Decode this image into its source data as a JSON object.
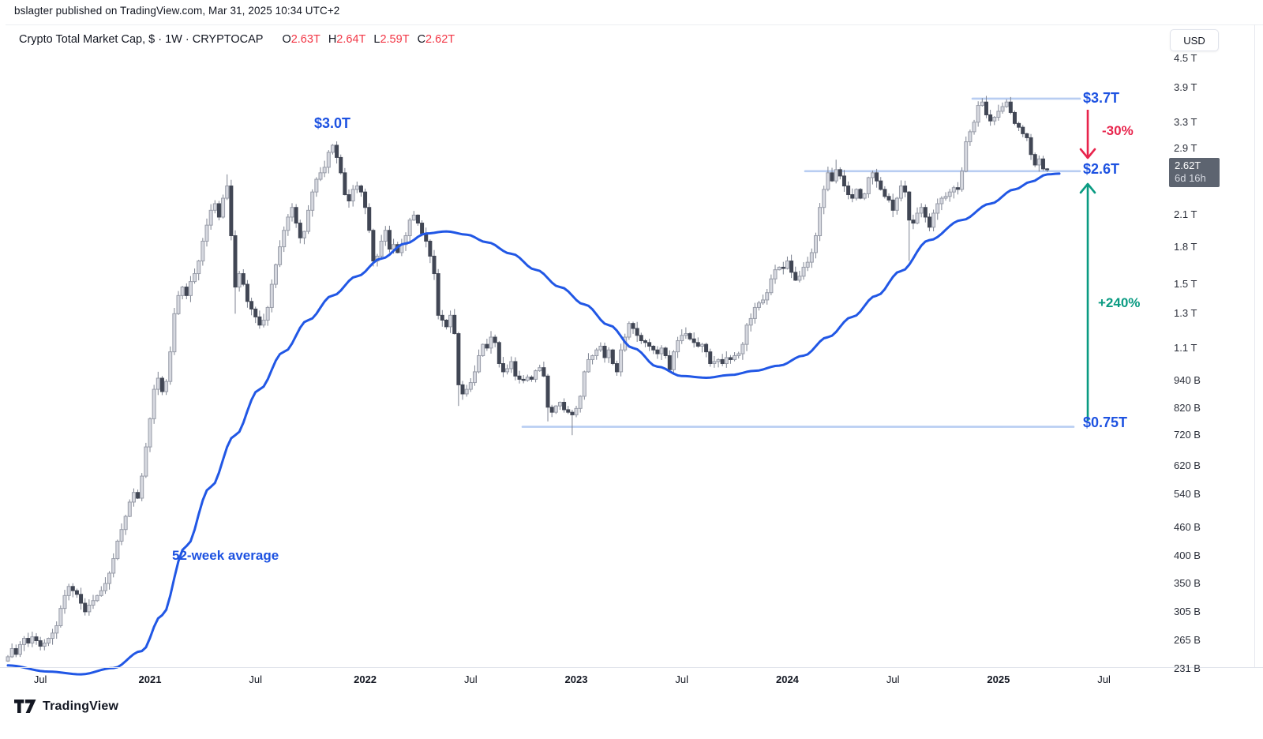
{
  "header": {
    "published": "bslagter published on TradingView.com, Mar 31, 2025 10:34 UTC+2"
  },
  "symbol_bar": {
    "title": "Crypto Total Market Cap, $ · 1W · CRYPTOCAP",
    "ohlc": {
      "o_label": "O",
      "o_value": "2.63T",
      "h_label": "H",
      "h_value": "2.64T",
      "l_label": "L",
      "l_value": "2.59T",
      "c_label": "C",
      "c_value": "2.62T"
    }
  },
  "price_scale": {
    "currency": "USD",
    "badge": {
      "price": "2.62T",
      "countdown": "6d 16h"
    },
    "ticks": [
      {
        "value": 4500,
        "label": "4.5 T"
      },
      {
        "value": 3900,
        "label": "3.9 T"
      },
      {
        "value": 3300,
        "label": "3.3 T"
      },
      {
        "value": 2900,
        "label": "2.9 T"
      },
      {
        "value": 2100,
        "label": "2.1 T"
      },
      {
        "value": 1800,
        "label": "1.8 T"
      },
      {
        "value": 1500,
        "label": "1.5 T"
      },
      {
        "value": 1300,
        "label": "1.3 T"
      },
      {
        "value": 1100,
        "label": "1.1 T"
      },
      {
        "value": 940,
        "label": "940 B"
      },
      {
        "value": 820,
        "label": "820 B"
      },
      {
        "value": 720,
        "label": "720 B"
      },
      {
        "value": 620,
        "label": "620 B"
      },
      {
        "value": 540,
        "label": "540 B"
      },
      {
        "value": 460,
        "label": "460 B"
      },
      {
        "value": 400,
        "label": "400 B"
      },
      {
        "value": 350,
        "label": "350 B"
      },
      {
        "value": 305,
        "label": "305 B"
      },
      {
        "value": 265,
        "label": "265 B"
      },
      {
        "value": 231,
        "label": "231 B"
      }
    ]
  },
  "time_scale": {
    "ticks": [
      {
        "week": 8,
        "label": "Jul",
        "year": false
      },
      {
        "week": 35,
        "label": "2021",
        "year": true
      },
      {
        "week": 61,
        "label": "Jul",
        "year": false
      },
      {
        "week": 88,
        "label": "2022",
        "year": true
      },
      {
        "week": 114,
        "label": "Jul",
        "year": false
      },
      {
        "week": 140,
        "label": "2023",
        "year": true
      },
      {
        "week": 166,
        "label": "Jul",
        "year": false
      },
      {
        "week": 192,
        "label": "2024",
        "year": true
      },
      {
        "week": 218,
        "label": "Jul",
        "year": false
      },
      {
        "week": 244,
        "label": "2025",
        "year": true
      },
      {
        "week": 270,
        "label": "Jul",
        "year": false
      }
    ]
  },
  "chart_data": {
    "type": "candlestick",
    "title": "Crypto Total Market Cap",
    "timeframe": "1W",
    "units": "billions USD",
    "y_scale": "log",
    "ylim_billions": [
      231,
      4500
    ],
    "first_candle_open_billions": 240,
    "weekly_closes_billions": [
      245,
      255,
      248,
      260,
      268,
      262,
      270,
      265,
      258,
      262,
      268,
      275,
      285,
      310,
      330,
      345,
      338,
      332,
      318,
      305,
      315,
      322,
      330,
      338,
      350,
      368,
      395,
      430,
      455,
      485,
      520,
      545,
      530,
      590,
      680,
      780,
      900,
      950,
      890,
      935,
      1080,
      1300,
      1420,
      1480,
      1420,
      1520,
      1580,
      1680,
      1850,
      2000,
      2150,
      2220,
      2080,
      2280,
      2420,
      1900,
      1480,
      1580,
      1500,
      1380,
      1330,
      1280,
      1230,
      1260,
      1340,
      1500,
      1650,
      1800,
      1950,
      2080,
      2180,
      2020,
      1880,
      1940,
      2150,
      2350,
      2500,
      2580,
      2650,
      2850,
      2950,
      2780,
      2580,
      2320,
      2250,
      2380,
      2420,
      2350,
      2180,
      1950,
      1680,
      1720,
      1850,
      1950,
      1780,
      1820,
      1750,
      1820,
      1900,
      2050,
      2100,
      2020,
      1920,
      1850,
      1720,
      1580,
      1290,
      1260,
      1220,
      1290,
      1180,
      920,
      880,
      900,
      930,
      980,
      1060,
      1120,
      1100,
      1160,
      1130,
      1020,
      980,
      995,
      1030,
      960,
      945,
      940,
      955,
      945,
      985,
      1000,
      960,
      825,
      805,
      830,
      845,
      815,
      805,
      795,
      820,
      870,
      980,
      1040,
      1060,
      1090,
      1110,
      1050,
      1090,
      1020,
      980,
      1090,
      1160,
      1240,
      1210,
      1170,
      1140,
      1130,
      1110,
      1090,
      1070,
      1100,
      1060,
      990,
      1080,
      1140,
      1170,
      1180,
      1150,
      1130,
      1110,
      1120,
      1080,
      1020,
      1030,
      1040,
      1020,
      1050,
      1040,
      1060,
      1070,
      1120,
      1230,
      1270,
      1340,
      1370,
      1390,
      1440,
      1540,
      1610,
      1630,
      1620,
      1680,
      1590,
      1530,
      1560,
      1630,
      1670,
      1750,
      1900,
      2180,
      2380,
      2580,
      2480,
      2620,
      2540,
      2420,
      2320,
      2280,
      2380,
      2280,
      2330,
      2520,
      2580,
      2480,
      2380,
      2300,
      2260,
      2150,
      2280,
      2420,
      2350,
      2050,
      2020,
      2120,
      2180,
      2080,
      1980,
      2120,
      2220,
      2280,
      2300,
      2350,
      2400,
      2380,
      2600,
      3000,
      3150,
      3300,
      3580,
      3640,
      3420,
      3320,
      3380,
      3480,
      3560,
      3640,
      3460,
      3280,
      3220,
      3120,
      3060,
      2820,
      2680,
      2760,
      2630,
      2620
    ],
    "wick_overrides_week_high_low": [
      [
        54,
        2560,
        2260
      ],
      [
        56,
        1950,
        1300
      ],
      [
        111,
        1190,
        830
      ],
      [
        133,
        970,
        770
      ],
      [
        139,
        815,
        720
      ],
      [
        204,
        2750,
        2450
      ],
      [
        222,
        2360,
        1680
      ],
      [
        240,
        3710,
        3560
      ],
      [
        246,
        3690,
        3540
      ]
    ],
    "last_candle_ohlc_billions": [
      2630,
      2640,
      2590,
      2620
    ],
    "ma_series": {
      "name": "52-week average",
      "anchors_week_value_billions": [
        [
          0,
          235
        ],
        [
          10,
          228
        ],
        [
          18,
          225
        ],
        [
          26,
          232
        ],
        [
          33,
          252
        ],
        [
          38,
          300
        ],
        [
          44,
          420
        ],
        [
          50,
          560
        ],
        [
          56,
          720
        ],
        [
          62,
          900
        ],
        [
          68,
          1080
        ],
        [
          74,
          1260
        ],
        [
          80,
          1420
        ],
        [
          86,
          1560
        ],
        [
          92,
          1700
        ],
        [
          98,
          1830
        ],
        [
          103,
          1920
        ],
        [
          108,
          1940
        ],
        [
          113,
          1910
        ],
        [
          118,
          1840
        ],
        [
          124,
          1740
        ],
        [
          130,
          1610
        ],
        [
          136,
          1480
        ],
        [
          142,
          1360
        ],
        [
          148,
          1230
        ],
        [
          154,
          1100
        ],
        [
          160,
          1005
        ],
        [
          166,
          960
        ],
        [
          172,
          952
        ],
        [
          178,
          965
        ],
        [
          184,
          985
        ],
        [
          190,
          1010
        ],
        [
          196,
          1060
        ],
        [
          202,
          1160
        ],
        [
          208,
          1280
        ],
        [
          214,
          1420
        ],
        [
          220,
          1600
        ],
        [
          227,
          1860
        ],
        [
          235,
          2050
        ],
        [
          242,
          2220
        ],
        [
          248,
          2380
        ],
        [
          252,
          2470
        ],
        [
          256,
          2560
        ],
        [
          259,
          2570
        ]
      ]
    },
    "levels": [
      {
        "label": "$3.7T",
        "value_billions": 3700
      },
      {
        "label": "$2.6T",
        "value_billions": 2600
      },
      {
        "label": "$0.75T",
        "value_billions": 750
      }
    ],
    "annotations": {
      "peak": {
        "text": "$3.0T",
        "value_billions": 3000
      },
      "drop": {
        "text": "-30%",
        "from_label": "$3.7T",
        "to_label": "$2.6T"
      },
      "gain": {
        "text": "+240%",
        "from_label": "$0.75T",
        "to_label": "$2.6T"
      },
      "ma_label": {
        "text": "52-week average"
      }
    }
  },
  "footer": {
    "brand": "TradingView"
  },
  "colors": {
    "annotation_blue": "#1D52E1",
    "ma_blue": "#2157E5",
    "level_line_blue": "#B5CBF2",
    "drop_red": "#E8244C",
    "gain_green": "#0A9B82",
    "candle_up_fill": "#D6D8DF",
    "candle_up_border": "#989CA8",
    "candle_down": "#414654",
    "wick": "#7C8290",
    "ohlc_value_red": "#F23645",
    "axis_text": "#131722",
    "badge_bg": "#5D6470"
  }
}
